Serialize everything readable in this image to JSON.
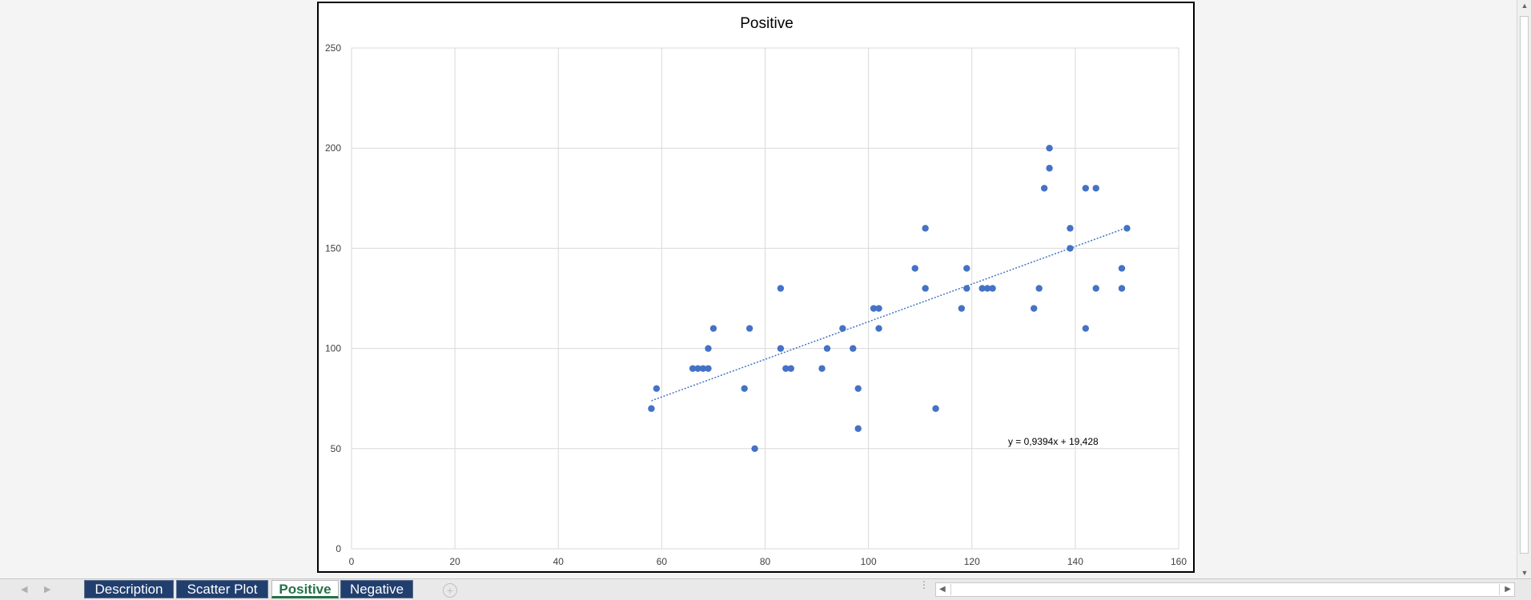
{
  "chart_data": {
    "type": "scatter",
    "title": "Positive",
    "xlabel": "",
    "ylabel": "",
    "xlim": [
      0,
      160
    ],
    "ylim": [
      0,
      250
    ],
    "x_ticks": [
      "0",
      "20",
      "40",
      "60",
      "80",
      "100",
      "120",
      "140",
      "160"
    ],
    "y_ticks": [
      "0",
      "50",
      "100",
      "150",
      "200",
      "250"
    ],
    "grid": true,
    "marker_color": "#4472c4",
    "trendline": {
      "type": "linear",
      "slope": 0.9394,
      "intercept": 19.428,
      "x_range": [
        58,
        150
      ],
      "label": "y = 0,9394x + 19,428",
      "label_at": [
        127,
        52
      ]
    },
    "points": [
      {
        "x": 58,
        "y": 70
      },
      {
        "x": 59,
        "y": 80
      },
      {
        "x": 66,
        "y": 90
      },
      {
        "x": 67,
        "y": 90
      },
      {
        "x": 68,
        "y": 90
      },
      {
        "x": 69,
        "y": 90
      },
      {
        "x": 69,
        "y": 100
      },
      {
        "x": 70,
        "y": 110
      },
      {
        "x": 76,
        "y": 80
      },
      {
        "x": 77,
        "y": 110
      },
      {
        "x": 78,
        "y": 50
      },
      {
        "x": 83,
        "y": 130
      },
      {
        "x": 83,
        "y": 100
      },
      {
        "x": 84,
        "y": 90
      },
      {
        "x": 85,
        "y": 90
      },
      {
        "x": 91,
        "y": 90
      },
      {
        "x": 92,
        "y": 100
      },
      {
        "x": 95,
        "y": 110
      },
      {
        "x": 97,
        "y": 100
      },
      {
        "x": 98,
        "y": 80
      },
      {
        "x": 98,
        "y": 60
      },
      {
        "x": 101,
        "y": 120
      },
      {
        "x": 102,
        "y": 120
      },
      {
        "x": 102,
        "y": 110
      },
      {
        "x": 109,
        "y": 140
      },
      {
        "x": 111,
        "y": 160
      },
      {
        "x": 111,
        "y": 130
      },
      {
        "x": 113,
        "y": 70
      },
      {
        "x": 118,
        "y": 120
      },
      {
        "x": 119,
        "y": 140
      },
      {
        "x": 119,
        "y": 130
      },
      {
        "x": 122,
        "y": 130
      },
      {
        "x": 123,
        "y": 130
      },
      {
        "x": 124,
        "y": 130
      },
      {
        "x": 132,
        "y": 120
      },
      {
        "x": 133,
        "y": 130
      },
      {
        "x": 134,
        "y": 180
      },
      {
        "x": 135,
        "y": 200
      },
      {
        "x": 135,
        "y": 190
      },
      {
        "x": 139,
        "y": 160
      },
      {
        "x": 139,
        "y": 150
      },
      {
        "x": 142,
        "y": 180
      },
      {
        "x": 142,
        "y": 110
      },
      {
        "x": 144,
        "y": 180
      },
      {
        "x": 144,
        "y": 130
      },
      {
        "x": 149,
        "y": 140
      },
      {
        "x": 149,
        "y": 130
      },
      {
        "x": 150,
        "y": 160
      }
    ]
  },
  "sheet_tabs": [
    {
      "label": "Description",
      "active": false
    },
    {
      "label": "Scatter Plot",
      "active": false
    },
    {
      "label": "Positive",
      "active": true
    },
    {
      "label": "Negative",
      "active": false
    }
  ],
  "tabbar": {
    "add_sheet_glyph": "+",
    "nav_prev_glyph": "◀",
    "nav_next_glyph": "▶"
  }
}
